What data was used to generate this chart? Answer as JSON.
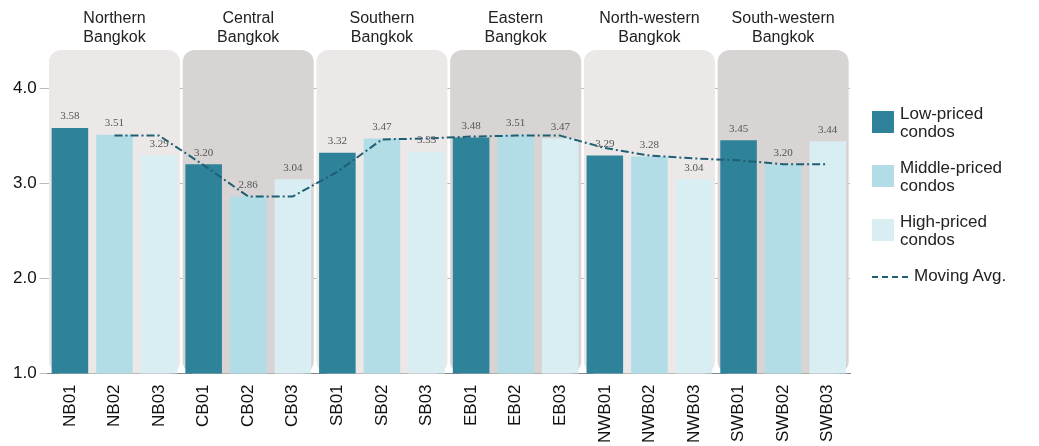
{
  "chart_data": {
    "type": "bar",
    "categories": [
      "NB01",
      "NB02",
      "NB03",
      "CB01",
      "CB02",
      "CB03",
      "SB01",
      "SB02",
      "SB03",
      "EB01",
      "EB02",
      "EB03",
      "NWB01",
      "NWB02",
      "NWB03",
      "SWB01",
      "SWB02",
      "SWB03"
    ],
    "series": [
      {
        "name": "Low-priced condos",
        "color": "#2e8299",
        "values": [
          3.58,
          null,
          null,
          3.2,
          null,
          null,
          3.32,
          null,
          null,
          3.48,
          null,
          null,
          3.29,
          null,
          null,
          3.45,
          null,
          null
        ],
        "value_labels": [
          "3.58",
          null,
          null,
          "3.20",
          null,
          null,
          "3.32",
          null,
          null,
          "3.48",
          null,
          null,
          "3.29",
          null,
          null,
          "3.45",
          null,
          null
        ]
      },
      {
        "name": "Middle-priced condos",
        "color": "#b2dce6",
        "values": [
          null,
          3.51,
          null,
          null,
          2.86,
          null,
          null,
          3.47,
          null,
          null,
          3.51,
          null,
          null,
          3.28,
          null,
          null,
          3.2,
          null
        ],
        "value_labels": [
          null,
          "3.51",
          null,
          null,
          "2.86",
          null,
          null,
          "3.47",
          null,
          null,
          "3.51",
          null,
          null,
          "3.28",
          null,
          null,
          "3.20",
          null
        ]
      },
      {
        "name": "High-priced condos",
        "color": "#d8eef3",
        "values": [
          null,
          null,
          3.29,
          null,
          null,
          3.04,
          null,
          null,
          3.33,
          null,
          null,
          3.47,
          null,
          null,
          3.04,
          null,
          null,
          3.44
        ],
        "value_labels": [
          null,
          null,
          "3.29",
          null,
          null,
          "3.04",
          null,
          null,
          "3.33",
          null,
          null,
          "3.47",
          null,
          null,
          "3.04",
          null,
          null,
          "3.44"
        ]
      },
      {
        "name": "Moving Avg.",
        "type": "line",
        "color": "#1f5f73",
        "line_style": "dashed",
        "marker": "none",
        "values": [
          null,
          3.5,
          3.5,
          3.19,
          2.86,
          2.86,
          3.12,
          3.46,
          3.47,
          3.49,
          3.5,
          3.5,
          3.37,
          3.29,
          3.26,
          3.24,
          3.2,
          3.2
        ]
      }
    ],
    "ylim": [
      1,
      4.4
    ],
    "yticks": [
      {
        "value": 1,
        "label": "1.0"
      },
      {
        "value": 2,
        "label": "2.0"
      },
      {
        "value": 3,
        "label": "3.0"
      },
      {
        "value": 4,
        "label": "4.0"
      }
    ],
    "grid": "y",
    "legend": "right",
    "bands": [
      {
        "axis": "x",
        "from": "NB01",
        "to": "NB03",
        "label": "Northern Bangkok",
        "color": "#ece8e8"
      },
      {
        "axis": "x",
        "from": "CB01",
        "to": "CB03",
        "label": "Central Bangkok",
        "color": "#d9d4d4"
      },
      {
        "axis": "x",
        "from": "SB01",
        "to": "SB03",
        "label": "Southern Bangkok",
        "color": "#ece8e8"
      },
      {
        "axis": "x",
        "from": "EB01",
        "to": "EB03",
        "label": "Eastern Bangkok",
        "color": "#d9d4d4"
      },
      {
        "axis": "x",
        "from": "NWB01",
        "to": "NWB03",
        "label": "North-western Bangkok",
        "color": "#ece8e8"
      },
      {
        "axis": "x",
        "from": "SWB01",
        "to": "SWB03",
        "label": "South-western Bangkok",
        "color": "#d9d4d4"
      }
    ]
  }
}
